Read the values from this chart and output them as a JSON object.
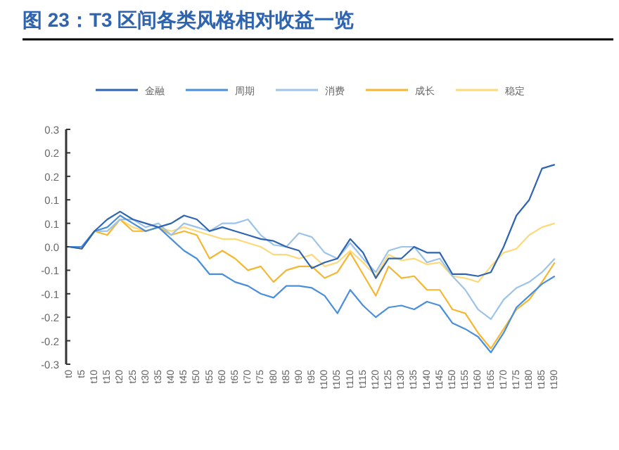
{
  "chart_data": {
    "type": "line",
    "title": "图 23：T3 区间各类风格相对收益一览",
    "categories": [
      "t0",
      null,
      null,
      null,
      null,
      "t5",
      null,
      null,
      null,
      null,
      "t10",
      null,
      null,
      null,
      null,
      "t15",
      null,
      null,
      null,
      null,
      "t20",
      null,
      null,
      null,
      null,
      "t25",
      null,
      null,
      null,
      null,
      "t30",
      null,
      null,
      null,
      null,
      "t35",
      null,
      null,
      null,
      null,
      "t40",
      null,
      null,
      null,
      null,
      "t45",
      null,
      null,
      null,
      null,
      "t50",
      null,
      null,
      null,
      null,
      "t55",
      null,
      null,
      null,
      null,
      "t60",
      null,
      null,
      null,
      null,
      "t65",
      null,
      null,
      null,
      null,
      "t70",
      null,
      null,
      null,
      null,
      "t75",
      null,
      null,
      null,
      null,
      "t80",
      null,
      null,
      null,
      null,
      "t85",
      null,
      null,
      null,
      null,
      "t90",
      null,
      null,
      null,
      null,
      "t95",
      null,
      null,
      null,
      null,
      "t100",
      null,
      null,
      null,
      null,
      "t105",
      null,
      null,
      null,
      null,
      "t110",
      null,
      null,
      null,
      null,
      "t115",
      null,
      null,
      null,
      null,
      "t120",
      null,
      null,
      null,
      null,
      "t125",
      null,
      null,
      null,
      null,
      "t130",
      null,
      null,
      null,
      null,
      "t135",
      null,
      null,
      null,
      null,
      "t140",
      null,
      null,
      null,
      null,
      "t145",
      null,
      null,
      null,
      null,
      "t150",
      null,
      null,
      null,
      null,
      "t155",
      null,
      null,
      null,
      null,
      "t160",
      null,
      null,
      null,
      null,
      "t165",
      null,
      null,
      null,
      null,
      "t170",
      null,
      null,
      null,
      null,
      "t175",
      null,
      null,
      null,
      null,
      "t180",
      null,
      null,
      null,
      null,
      "t185",
      null,
      null,
      null,
      null,
      "t190",
      null,
      null
    ],
    "ylim": [
      -0.3,
      0.3
    ],
    "yticks": [
      {
        "value": -0.3,
        "label": "-0.3"
      },
      {
        "value": -0.24,
        "label": "-0.2"
      },
      {
        "value": -0.18,
        "label": "-0.2"
      },
      {
        "value": -0.12,
        "label": "-0.1"
      },
      {
        "value": -0.06,
        "label": "-0.1"
      },
      {
        "value": 0,
        "label": "0.0"
      },
      {
        "value": 0.06,
        "label": "0.1"
      },
      {
        "value": 0.12,
        "label": "0.1"
      },
      {
        "value": 0.18,
        "label": "0.2"
      },
      {
        "value": 0.24,
        "label": "0.2"
      },
      {
        "value": 0.3,
        "label": "0.3"
      }
    ],
    "legend": "top",
    "series": [
      {
        "name": "金融",
        "color": "#2e64b0",
        "x": [
          "t0",
          "t5",
          "t10",
          "t15",
          "t20",
          "t25",
          "t30",
          "t35",
          "t40",
          "t45",
          "t50",
          "t55",
          "t60",
          "t65",
          "t70",
          "t75",
          "t80",
          "t85",
          "t90",
          "t95",
          "t100",
          "t105",
          "t110",
          "t115",
          "t120",
          "t125",
          "t130",
          "t135",
          "t140",
          "t145",
          "t150",
          "t155",
          "t160",
          "t165",
          "t170",
          "t175",
          "t180",
          "t185",
          "t190"
        ],
        "values": [
          0,
          -0.005,
          0.04,
          0.07,
          0.09,
          0.07,
          0.06,
          0.05,
          0.06,
          0.08,
          0.07,
          0.04,
          0.05,
          0.04,
          0.03,
          0.02,
          0.015,
          0,
          -0.01,
          -0.055,
          -0.04,
          -0.03,
          0.02,
          -0.015,
          -0.08,
          -0.03,
          -0.03,
          0,
          -0.015,
          -0.015,
          -0.07,
          -0.07,
          -0.075,
          -0.065,
          0,
          0.08,
          0.12,
          0.2,
          0.21
        ]
      },
      {
        "name": "周期",
        "color": "#4a8fdc",
        "x": [
          "t0",
          "t5",
          "t10",
          "t15",
          "t20",
          "t25",
          "t30",
          "t35",
          "t40",
          "t45",
          "t50",
          "t55",
          "t60",
          "t65",
          "t70",
          "t75",
          "t80",
          "t85",
          "t90",
          "t95",
          "t100",
          "t105",
          "t110",
          "t115",
          "t120",
          "t125",
          "t130",
          "t135",
          "t140",
          "t145",
          "t150",
          "t155",
          "t160",
          "t165",
          "t170",
          "t175",
          "t180",
          "t185",
          "t190"
        ],
        "values": [
          0,
          0,
          0.04,
          0.05,
          0.08,
          0.06,
          0.04,
          0.05,
          0.02,
          -0.01,
          -0.03,
          -0.07,
          -0.07,
          -0.09,
          -0.1,
          -0.12,
          -0.13,
          -0.1,
          -0.1,
          -0.105,
          -0.125,
          -0.17,
          -0.11,
          -0.15,
          -0.18,
          -0.155,
          -0.15,
          -0.16,
          -0.14,
          -0.15,
          -0.195,
          -0.21,
          -0.23,
          -0.27,
          -0.22,
          -0.155,
          -0.125,
          -0.095,
          -0.075
        ]
      },
      {
        "name": "消费",
        "color": "#9cc3ea",
        "x": [
          "t0",
          "t5",
          "t10",
          "t15",
          "t20",
          "t25",
          "t30",
          "t35",
          "t40",
          "t45",
          "t50",
          "t55",
          "t60",
          "t65",
          "t70",
          "t75",
          "t80",
          "t85",
          "t90",
          "t95",
          "t100",
          "t105",
          "t110",
          "t115",
          "t120",
          "t125",
          "t130",
          "t135",
          "t140",
          "t145",
          "t150",
          "t155",
          "t160",
          "t165",
          "t170",
          "t175",
          "t180",
          "t185",
          "t190"
        ],
        "values": [
          0,
          0,
          0.04,
          0.04,
          0.07,
          0.07,
          0.05,
          0.06,
          0.03,
          0.06,
          0.05,
          0.04,
          0.06,
          0.06,
          0.07,
          0.03,
          0.005,
          0,
          0.035,
          0.025,
          -0.015,
          -0.03,
          0.01,
          -0.03,
          -0.065,
          -0.01,
          0,
          0,
          -0.04,
          -0.03,
          -0.075,
          -0.11,
          -0.16,
          -0.185,
          -0.135,
          -0.105,
          -0.09,
          -0.065,
          -0.03
        ]
      },
      {
        "name": "成长",
        "color": "#f5b731",
        "x": [
          "t0",
          "t5",
          "t10",
          "t15",
          "t20",
          "t25",
          "t30",
          "t35",
          "t40",
          "t45",
          "t50",
          "t55",
          "t60",
          "t65",
          "t70",
          "t75",
          "t80",
          "t85",
          "t90",
          "t95",
          "t100",
          "t105",
          "t110",
          "t115",
          "t120",
          "t125",
          "t130",
          "t135",
          "t140",
          "t145",
          "t150",
          "t155",
          "t160",
          "t165",
          "t170",
          "t175",
          "t180",
          "t185",
          "t190"
        ],
        "values": [
          0,
          -0.005,
          0.04,
          0.03,
          0.07,
          0.04,
          0.04,
          0.05,
          0.03,
          0.04,
          0.03,
          -0.03,
          -0.01,
          -0.03,
          -0.06,
          -0.05,
          -0.09,
          -0.06,
          -0.05,
          -0.05,
          -0.08,
          -0.065,
          -0.015,
          -0.07,
          -0.125,
          -0.05,
          -0.08,
          -0.075,
          -0.11,
          -0.11,
          -0.16,
          -0.17,
          -0.22,
          -0.26,
          -0.21,
          -0.16,
          -0.135,
          -0.09,
          -0.04
        ]
      },
      {
        "name": "稳定",
        "color": "#fdd97a",
        "x": [
          "t0",
          "t5",
          "t10",
          "t15",
          "t20",
          "t25",
          "t30",
          "t35",
          "t40",
          "t45",
          "t50",
          "t55",
          "t60",
          "t65",
          "t70",
          "t75",
          "t80",
          "t85",
          "t90",
          "t95",
          "t100",
          "t105",
          "t110",
          "t115",
          "t120",
          "t125",
          "t130",
          "t135",
          "t140",
          "t145",
          "t150",
          "t155",
          "t160",
          "t165",
          "t170",
          "t175",
          "t180",
          "t185",
          "t190"
        ],
        "values": [
          0,
          0,
          0.04,
          0.04,
          0.07,
          0.05,
          0.04,
          0.05,
          0.04,
          0.05,
          0.04,
          0.03,
          0.02,
          0.02,
          0.01,
          0,
          -0.02,
          -0.02,
          -0.03,
          -0.02,
          -0.05,
          -0.04,
          -0.01,
          -0.04,
          -0.075,
          -0.02,
          -0.035,
          -0.03,
          -0.045,
          -0.04,
          -0.075,
          -0.08,
          -0.09,
          -0.05,
          -0.015,
          -0.005,
          0.03,
          0.05,
          0.06
        ]
      }
    ]
  }
}
